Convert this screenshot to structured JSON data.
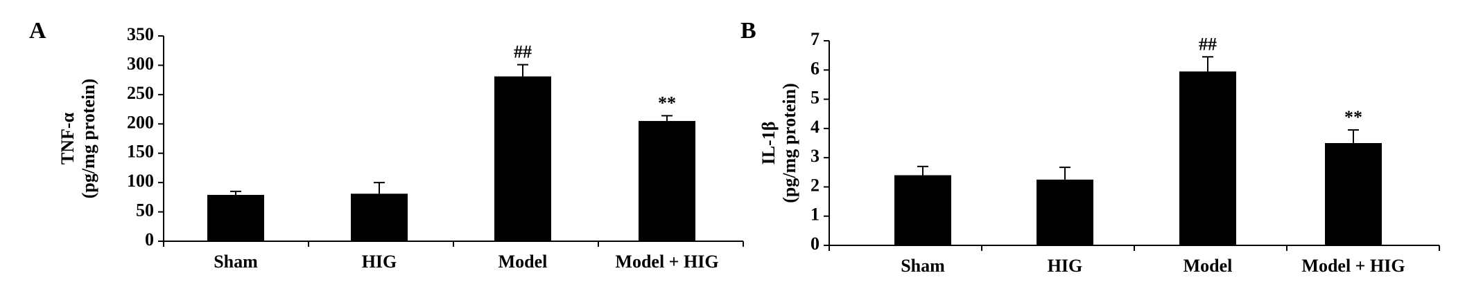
{
  "chart_data": [
    {
      "type": "bar",
      "panel": "A",
      "y_label": [
        "TNF-α",
        "(pg/mg protein)"
      ],
      "categories": [
        "Sham",
        "HIG",
        "Model",
        "Model + HIG"
      ],
      "values": [
        79,
        81,
        281,
        205
      ],
      "errors": [
        6,
        19,
        20,
        9
      ],
      "annotations": [
        null,
        null,
        "##",
        "**"
      ],
      "color": "#000000",
      "ylim": [
        0,
        350
      ],
      "yticks": [
        0,
        50,
        100,
        150,
        200,
        250,
        300,
        350
      ]
    },
    {
      "type": "bar",
      "panel": "B",
      "y_label": [
        "IL-1β",
        "(pg/mg protein)"
      ],
      "categories": [
        "Sham",
        "HIG",
        "Model",
        "Model + HIG"
      ],
      "values": [
        2.4,
        2.25,
        5.95,
        3.5
      ],
      "errors": [
        0.3,
        0.42,
        0.5,
        0.45
      ],
      "annotations": [
        null,
        null,
        "##",
        "**"
      ],
      "color": "#000000",
      "ylim": [
        0,
        7
      ],
      "yticks": [
        0,
        1,
        2,
        3,
        4,
        5,
        6,
        7
      ]
    }
  ]
}
